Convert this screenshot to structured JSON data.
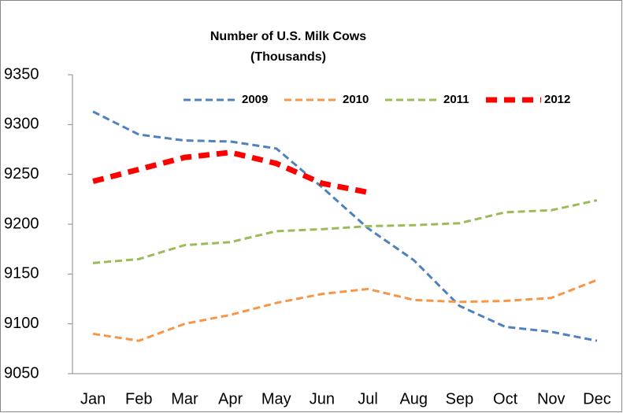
{
  "chart_data": {
    "type": "line",
    "title": "Number of U.S. Milk Cows",
    "subtitle": "(Thousands)",
    "categories": [
      "Jan",
      "Feb",
      "Mar",
      "Apr",
      "May",
      "Jun",
      "Jul",
      "Aug",
      "Sep",
      "Oct",
      "Nov",
      "Dec"
    ],
    "series": [
      {
        "name": "2009",
        "color": "#4f81bd",
        "values": [
          9313,
          9290,
          9284,
          9283,
          9276,
          9237,
          9196,
          9164,
          9118,
          9097,
          9092,
          9083
        ]
      },
      {
        "name": "2010",
        "color": "#f79646",
        "values": [
          9090,
          9083,
          9100,
          9109,
          9121,
          9130,
          9135,
          9124,
          9122,
          9123,
          9126,
          9144
        ]
      },
      {
        "name": "2011",
        "color": "#9bbb59",
        "values": [
          9161,
          9165,
          9179,
          9182,
          9193,
          9195,
          9198,
          9199,
          9201,
          9212,
          9214,
          9224
        ]
      },
      {
        "name": "2012",
        "color": "#ff0000",
        "values": [
          9243,
          9255,
          9267,
          9272,
          9261,
          9241,
          9232,
          null,
          null,
          null,
          null,
          null
        ]
      }
    ],
    "ylim": [
      9050,
      9350
    ],
    "yticks": [
      9050,
      9100,
      9150,
      9200,
      9250,
      9300,
      9350
    ],
    "grid": false
  }
}
